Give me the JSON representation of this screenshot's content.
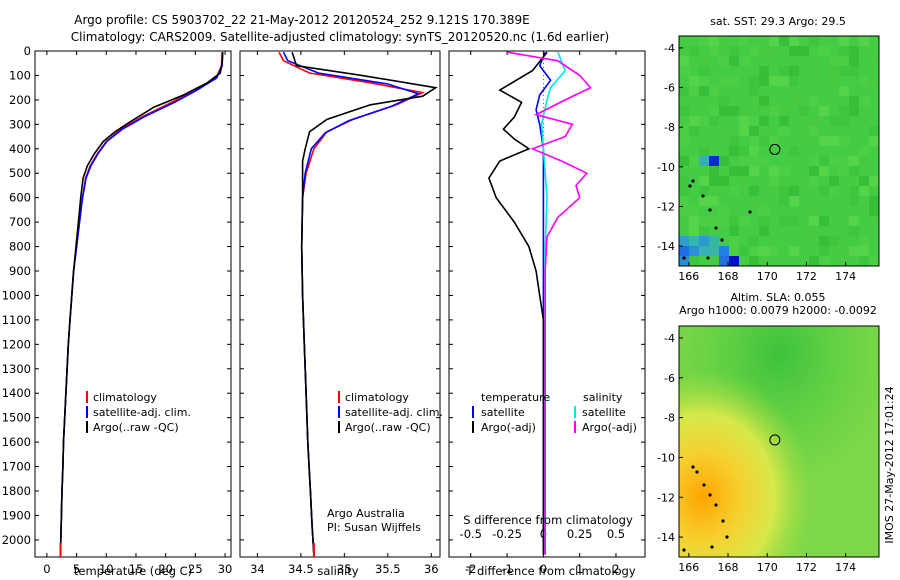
{
  "title_line1": "Argo profile: CS 5903702_22 21-May-2012 20120524_252 9.121S 170.389E",
  "title_line2": "Climatology: CARS2009. Satellite-adjusted climatology: synTS_20120520.nc (1.6d earlier)",
  "credit": [
    "Argo Australia",
    "PI: Susan Wijffels"
  ],
  "side_stamp": "IMOS 27-May-2012 17:01:24",
  "colors": {
    "climatology": "#ff0000",
    "satellite": "#0000ff",
    "argo": "#000000",
    "s_satellite": "#00e5ee",
    "s_argo": "#ff00ff"
  },
  "chart_data": [
    {
      "type": "line",
      "id": "temperature",
      "xlabel": "temperature (deg C)",
      "ylabel": "",
      "xlim": [
        -2,
        31
      ],
      "ylim": [
        2070,
        0
      ],
      "xticks": [
        0,
        5,
        10,
        15,
        20,
        25,
        30
      ],
      "yticks": [
        0,
        100,
        200,
        300,
        400,
        500,
        600,
        700,
        800,
        900,
        1000,
        1100,
        1200,
        1300,
        1400,
        1500,
        1600,
        1700,
        1800,
        1900,
        2000
      ],
      "legend": [
        "climatology",
        "satellite-adj. clim.",
        "Argo(..raw -QC)"
      ],
      "series": [
        {
          "name": "climatology",
          "color": "#ff0000",
          "points": [
            [
              29.5,
              5
            ],
            [
              29.4,
              60
            ],
            [
              28.5,
              110
            ],
            [
              25,
              160
            ],
            [
              21,
              210
            ],
            [
              16,
              270
            ],
            [
              12.5,
              320
            ],
            [
              10,
              370
            ],
            [
              8.5,
              420
            ],
            [
              7.3,
              470
            ],
            [
              6.5,
              520
            ],
            [
              6,
              600
            ],
            [
              5.5,
              700
            ],
            [
              5,
              800
            ],
            [
              4.5,
              900
            ],
            [
              4.2,
              1000
            ],
            [
              3.9,
              1100
            ],
            [
              3.6,
              1200
            ],
            [
              3.4,
              1300
            ],
            [
              3.2,
              1400
            ],
            [
              3,
              1500
            ],
            [
              2.8,
              1600
            ],
            [
              2.7,
              1700
            ],
            [
              2.55,
              1800
            ],
            [
              2.45,
              1900
            ],
            [
              2.35,
              2000
            ],
            [
              2.3,
              2060
            ]
          ]
        },
        {
          "name": "satellite-adj. clim.",
          "color": "#0000ff",
          "points": [
            [
              29.6,
              5
            ],
            [
              29.5,
              60
            ],
            [
              28.6,
              110
            ],
            [
              25.3,
              160
            ],
            [
              21.5,
              210
            ],
            [
              16.3,
              270
            ],
            [
              12.7,
              320
            ],
            [
              10.1,
              370
            ],
            [
              8.6,
              420
            ],
            [
              7.4,
              470
            ],
            [
              6.6,
              520
            ],
            [
              6,
              600
            ],
            [
              5.5,
              700
            ],
            [
              5,
              800
            ],
            [
              4.5,
              900
            ],
            [
              4.2,
              1000
            ],
            [
              3.9,
              1100
            ],
            [
              3.6,
              1200
            ],
            [
              3.4,
              1300
            ],
            [
              3.2,
              1400
            ],
            [
              3,
              1500
            ],
            [
              2.8,
              1600
            ],
            [
              2.7,
              1700
            ],
            [
              2.55,
              1800
            ],
            [
              2.45,
              1900
            ],
            [
              2.35,
              2000
            ],
            [
              2.3,
              2060
            ]
          ]
        },
        {
          "name": "Argo(..raw -QC)",
          "color": "#000000",
          "points": [
            [
              29.6,
              5
            ],
            [
              29.5,
              50
            ],
            [
              29.2,
              90
            ],
            [
              27,
              130
            ],
            [
              23,
              180
            ],
            [
              18,
              230
            ],
            [
              14,
              290
            ],
            [
              11.5,
              330
            ],
            [
              9.5,
              370
            ],
            [
              8,
              420
            ],
            [
              6.8,
              470
            ],
            [
              6.1,
              520
            ],
            [
              5.7,
              600
            ],
            [
              5.3,
              700
            ],
            [
              4.9,
              800
            ],
            [
              4.5,
              900
            ],
            [
              4.2,
              1000
            ],
            [
              3.9,
              1100
            ],
            [
              3.6,
              1200
            ],
            [
              3.4,
              1300
            ],
            [
              3.2,
              1400
            ],
            [
              3,
              1500
            ],
            [
              2.8,
              1600
            ],
            [
              2.7,
              1700
            ],
            [
              2.55,
              1800
            ],
            [
              2.45,
              1900
            ],
            [
              2.35,
              2000
            ],
            [
              2.3,
              2060
            ]
          ]
        }
      ]
    },
    {
      "type": "line",
      "id": "salinity",
      "xlabel": "salinity",
      "ylabel": "",
      "xlim": [
        33.8,
        36.1
      ],
      "ylim": [
        2070,
        0
      ],
      "xticks": [
        34,
        34.5,
        35,
        35.5,
        36
      ],
      "xticklabels": [
        "34",
        "34.5",
        "35",
        "35.5",
        "36"
      ],
      "legend": [
        "climatology",
        "satellite-adj. clim.",
        "Argo(..raw -QC)"
      ],
      "series": [
        {
          "name": "climatology",
          "color": "#ff0000",
          "points": [
            [
              34.25,
              5
            ],
            [
              34.3,
              40
            ],
            [
              34.6,
              90
            ],
            [
              35.3,
              130
            ],
            [
              35.9,
              170
            ],
            [
              35.6,
              220
            ],
            [
              35.1,
              280
            ],
            [
              34.8,
              330
            ],
            [
              34.65,
              400
            ],
            [
              34.56,
              500
            ],
            [
              34.52,
              600
            ],
            [
              34.51,
              800
            ],
            [
              34.52,
              1000
            ],
            [
              34.54,
              1200
            ],
            [
              34.56,
              1400
            ],
            [
              34.58,
              1600
            ],
            [
              34.61,
              1800
            ],
            [
              34.63,
              1950
            ],
            [
              34.65,
              2060
            ]
          ]
        },
        {
          "name": "satellite-adj. clim.",
          "color": "#0000ff",
          "points": [
            [
              34.3,
              5
            ],
            [
              34.35,
              40
            ],
            [
              34.7,
              90
            ],
            [
              35.5,
              135
            ],
            [
              35.85,
              175
            ],
            [
              35.55,
              225
            ],
            [
              35.05,
              285
            ],
            [
              34.78,
              335
            ],
            [
              34.62,
              400
            ],
            [
              34.55,
              500
            ],
            [
              34.52,
              600
            ],
            [
              34.51,
              800
            ],
            [
              34.52,
              1000
            ],
            [
              34.54,
              1200
            ],
            [
              34.56,
              1400
            ],
            [
              34.58,
              1600
            ],
            [
              34.61,
              1800
            ],
            [
              34.63,
              1950
            ],
            [
              34.65,
              2060
            ]
          ]
        },
        {
          "name": "Argo(..raw -QC)",
          "color": "#000000",
          "points": [
            [
              34.4,
              5
            ],
            [
              34.45,
              60
            ],
            [
              35.2,
              100
            ],
            [
              36.05,
              150
            ],
            [
              35.9,
              185
            ],
            [
              35.3,
              220
            ],
            [
              34.8,
              280
            ],
            [
              34.6,
              330
            ],
            [
              34.55,
              400
            ],
            [
              34.52,
              450
            ],
            [
              34.52,
              600
            ],
            [
              34.51,
              800
            ],
            [
              34.52,
              1000
            ],
            [
              34.54,
              1200
            ],
            [
              34.56,
              1400
            ],
            [
              34.58,
              1600
            ],
            [
              34.61,
              1800
            ],
            [
              34.63,
              1950
            ],
            [
              34.65,
              2060
            ]
          ]
        }
      ]
    },
    {
      "type": "line",
      "id": "difference",
      "xlabel": "T difference from climatology",
      "xlabel2": "S difference from climatology",
      "xlim": [
        -2.6,
        2.8
      ],
      "ylim": [
        2070,
        0
      ],
      "xticks": [
        -2,
        -1,
        0,
        1,
        2
      ],
      "xticks2": [
        -0.5,
        -0.25,
        0,
        0.25,
        0.5
      ],
      "xticklabels2": [
        "-0.5",
        "-0.25",
        "0",
        "0.25",
        "0.5"
      ],
      "legend_groups": [
        "temperature",
        "salinity"
      ],
      "legend": [
        "satellite",
        "Argo(-adj)",
        "satellite",
        "Argo(-adj)"
      ],
      "series": [
        {
          "name": "T satellite",
          "color": "#0000ff",
          "points": [
            [
              0.05,
              5
            ],
            [
              -0.1,
              60
            ],
            [
              0.2,
              120
            ],
            [
              -0.1,
              180
            ],
            [
              -0.2,
              240
            ],
            [
              -0.1,
              300
            ],
            [
              0,
              400
            ],
            [
              0,
              600
            ],
            [
              0,
              1000
            ],
            [
              0,
              2060
            ]
          ]
        },
        {
          "name": "T Argo(-adj)",
          "color": "#000000",
          "points": [
            [
              0.1,
              5
            ],
            [
              -0.3,
              80
            ],
            [
              -1.2,
              160
            ],
            [
              -0.6,
              210
            ],
            [
              -0.8,
              270
            ],
            [
              -1.1,
              320
            ],
            [
              -0.8,
              360
            ],
            [
              -0.4,
              400
            ],
            [
              -1.2,
              450
            ],
            [
              -1.5,
              520
            ],
            [
              -1.3,
              600
            ],
            [
              -0.8,
              700
            ],
            [
              -0.4,
              800
            ],
            [
              -0.2,
              900
            ],
            [
              -0.1,
              1000
            ],
            [
              0,
              1100
            ],
            [
              0,
              1500
            ],
            [
              0,
              2060
            ]
          ]
        },
        {
          "name": "S satellite",
          "color": "#00e5ee",
          "points": [
            [
              0.4,
              5
            ],
            [
              0.6,
              80
            ],
            [
              0.2,
              150
            ],
            [
              0.1,
              200
            ],
            [
              -0.05,
              300
            ],
            [
              0,
              400
            ],
            [
              0.1,
              600
            ],
            [
              0.05,
              800
            ],
            [
              0.05,
              1000
            ],
            [
              0.05,
              1400
            ],
            [
              0.05,
              2060
            ]
          ]
        },
        {
          "name": "S Argo(-adj)",
          "color": "#ff00ff",
          "points": [
            [
              -1,
              5
            ],
            [
              0.4,
              40
            ],
            [
              1,
              100
            ],
            [
              1.3,
              150
            ],
            [
              0.6,
              200
            ],
            [
              -0.2,
              260
            ],
            [
              0.8,
              300
            ],
            [
              0.6,
              350
            ],
            [
              -0.3,
              400
            ],
            [
              0.5,
              450
            ],
            [
              1.2,
              500
            ],
            [
              0.9,
              550
            ],
            [
              1,
              600
            ],
            [
              0.4,
              680
            ],
            [
              0.1,
              760
            ],
            [
              0.05,
              900
            ],
            [
              0.05,
              1200
            ],
            [
              0.05,
              2060
            ]
          ]
        }
      ]
    },
    {
      "type": "heatmap",
      "id": "sst_map",
      "title": "sat. SST: 29.3  Argo: 29.5",
      "xlim": [
        165.5,
        175.7
      ],
      "ylim": [
        -15,
        -3.4
      ],
      "xticks": [
        166,
        168,
        170,
        172,
        174
      ],
      "yticks": [
        -4,
        -6,
        -8,
        -10,
        -12,
        -14
      ],
      "float_position": [
        170.389,
        -9.121
      ]
    },
    {
      "type": "heatmap",
      "id": "sla_map",
      "title": "Altim. SLA: 0.055",
      "subtitle": "Argo h1000: 0.0079  h2000: -0.0092",
      "xlim": [
        165.5,
        175.7
      ],
      "ylim": [
        -15,
        -3.4
      ],
      "xticks": [
        166,
        168,
        170,
        172,
        174
      ],
      "yticks": [
        -4,
        -6,
        -8,
        -10,
        -12,
        -14
      ],
      "float_position": [
        170.389,
        -9.121
      ]
    }
  ]
}
